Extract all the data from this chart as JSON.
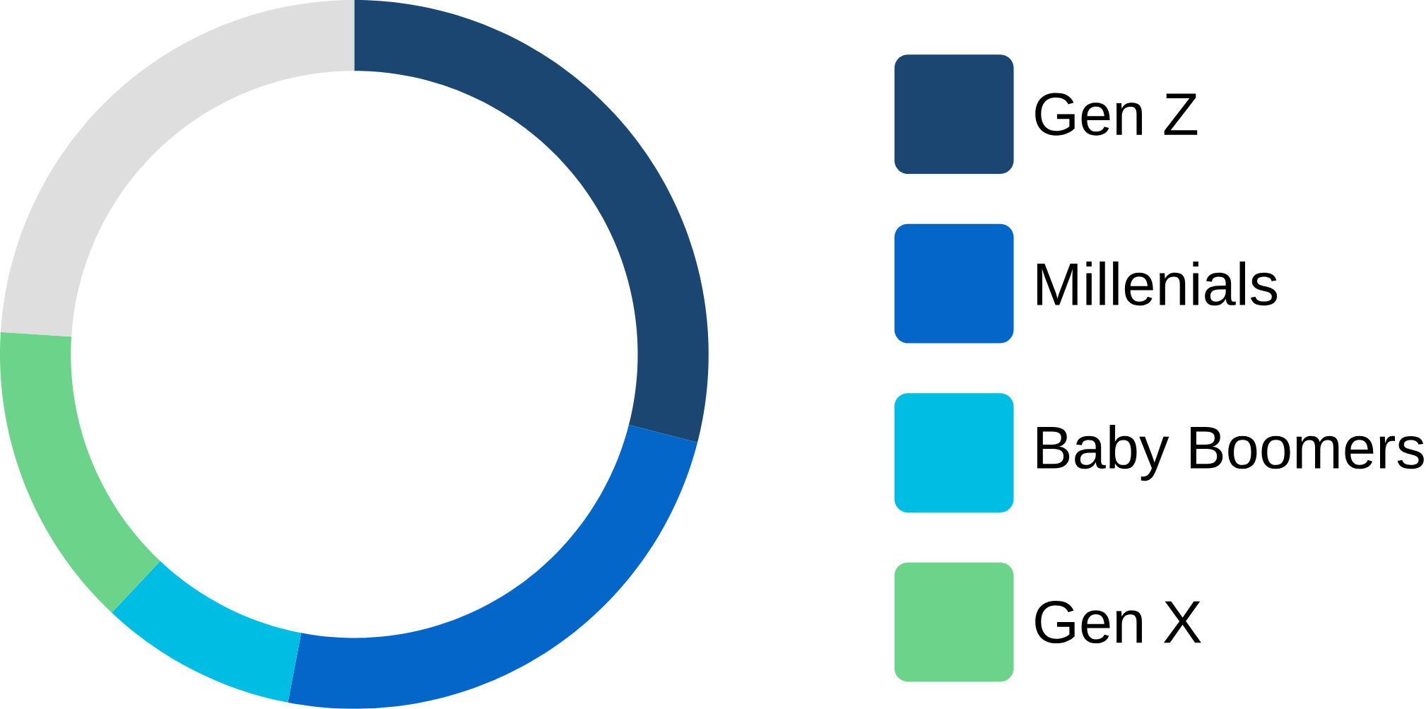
{
  "chart_data": {
    "type": "donut",
    "categories": [
      "Gen Z",
      "Millenials",
      "Baby Boomers",
      "Gen X",
      null
    ],
    "values": [
      29,
      24,
      9,
      14,
      24
    ],
    "colors": [
      "#1b4672",
      "#0466c8",
      "#00bde3",
      "#6bd48a",
      "#dedede"
    ],
    "legend": "right"
  }
}
